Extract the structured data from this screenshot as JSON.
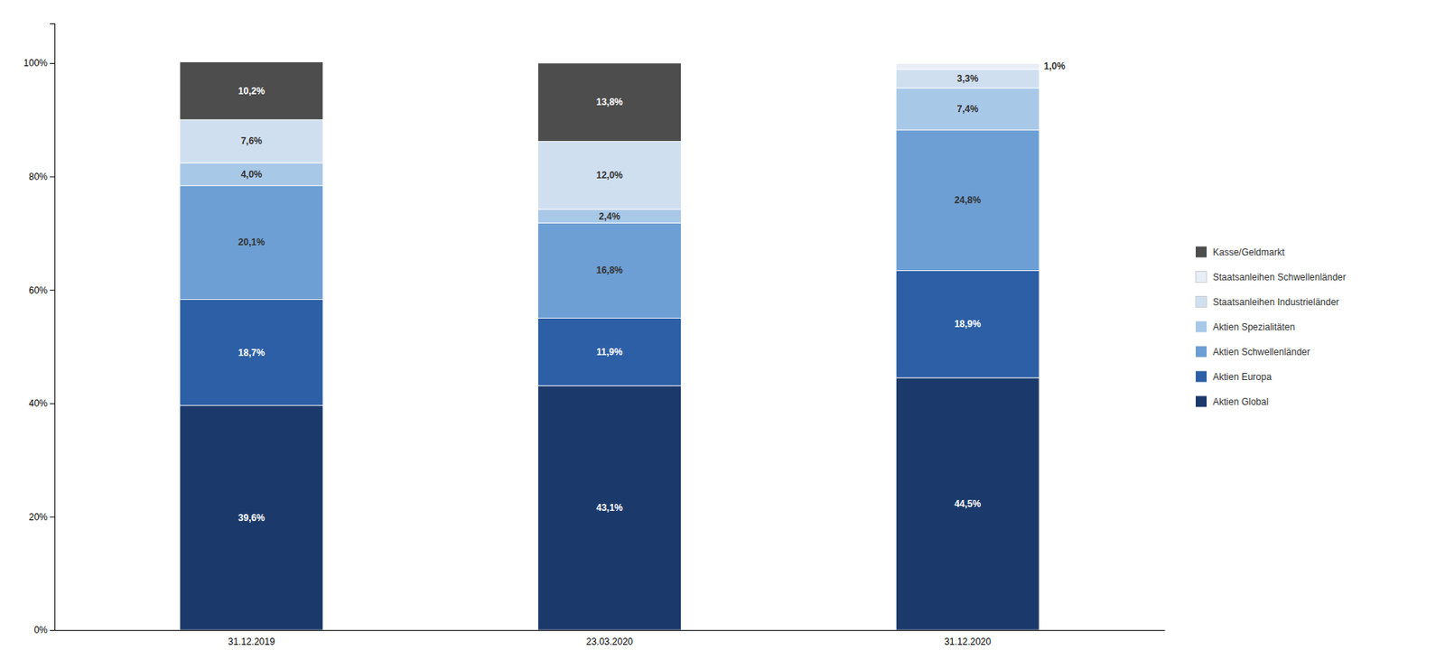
{
  "chart_data": {
    "type": "bar",
    "stacked": true,
    "categories": [
      "31.12.2019",
      "23.03.2020",
      "31.12.2020"
    ],
    "series": [
      {
        "name": "Aktien Global",
        "color": "#1b3a6b",
        "values": [
          39.6,
          43.1,
          44.5
        ],
        "value_labels": [
          "39,6%",
          "43,1%",
          "44,5%"
        ]
      },
      {
        "name": "Aktien Europa",
        "color": "#2d5fa6",
        "values": [
          18.7,
          11.9,
          18.9
        ],
        "value_labels": [
          "18,7%",
          "11,9%",
          "18,9%"
        ]
      },
      {
        "name": "Aktien Schwellenländer",
        "color": "#6d9fd4",
        "values": [
          20.1,
          16.8,
          24.8
        ],
        "value_labels": [
          "20,1%",
          "16,8%",
          "24,8%"
        ]
      },
      {
        "name": "Aktien Spezialitäten",
        "color": "#a8c8e8",
        "values": [
          4.0,
          2.4,
          7.4
        ],
        "value_labels": [
          "4,0%",
          "2,4%",
          "7,4%"
        ]
      },
      {
        "name": "Staatsanleihen Industrieländer",
        "color": "#d0dff0",
        "values": [
          7.6,
          12.0,
          3.3
        ],
        "value_labels": [
          "7,6%",
          "12,0%",
          "3,3%"
        ]
      },
      {
        "name": "Staatsanleihen Schwellenländer",
        "color": "#e8eef5",
        "values": [
          0.0,
          0.0,
          1.0
        ],
        "value_labels": [
          null,
          null,
          "1,0%"
        ]
      },
      {
        "name": "Kasse/Geldmarkt",
        "color": "#4d4d4d",
        "values": [
          10.2,
          13.8,
          0.0
        ],
        "value_labels": [
          "10,2%",
          "13,8%",
          null
        ]
      }
    ],
    "ylim": [
      0,
      107
    ],
    "yticks": [
      {
        "value": 0,
        "label": "0%"
      },
      {
        "value": 20,
        "label": "20%"
      },
      {
        "value": 40,
        "label": "40%"
      },
      {
        "value": 60,
        "label": "60%"
      },
      {
        "value": 80,
        "label": "80%"
      },
      {
        "value": 100,
        "label": "100%"
      }
    ],
    "grid": false,
    "legend": "right",
    "data_labels": true
  }
}
